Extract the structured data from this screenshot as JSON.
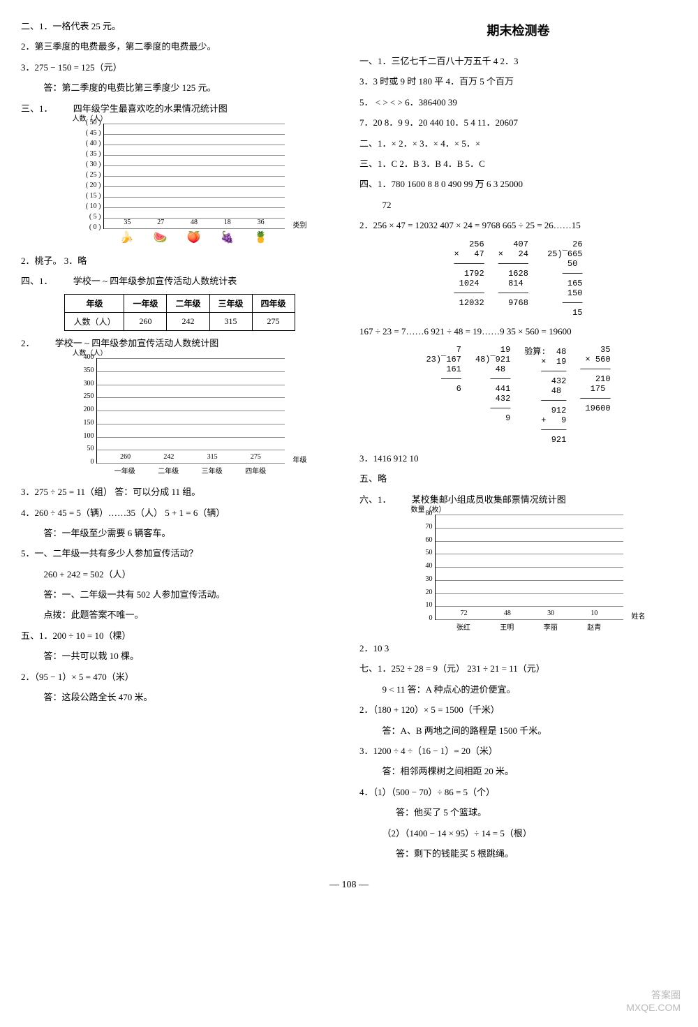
{
  "left": {
    "l1": "二、1．一格代表 25 元。",
    "l2": "2．第三季度的电费最多，第二季度的电费最少。",
    "l3": "3．275 − 150 = 125（元）",
    "l3a": "答：第二季度的电费比第三季度少 125 元。",
    "l4": "三、1．",
    "chart1_title": "四年级学生最喜欢吃的水果情况统计图",
    "chart1": {
      "yaxis_label": "人数（人）",
      "xaxis_label": "类别",
      "ymax": 50,
      "ystep": 5,
      "ylabels": [
        "( 50 )",
        "( 45 )",
        "( 40 )",
        "( 35 )",
        "( 30 )",
        "( 25 )",
        "( 20 )",
        "( 15 )",
        "( 10 )",
        "( 5 )",
        "( 0 )"
      ],
      "bars": [
        {
          "icon": "🍌",
          "val": 35
        },
        {
          "icon": "🍉",
          "val": 27
        },
        {
          "icon": "🍑",
          "val": 48
        },
        {
          "icon": "🍇",
          "val": 18
        },
        {
          "icon": "🍍",
          "val": 36
        }
      ],
      "bar_color": "#5a5a5a"
    },
    "l5": "2．桃子。    3．略",
    "l6": "四、1．",
    "table1_title": "学校一 ~ 四年级参加宣传活动人数统计表",
    "table1": {
      "headers": [
        "年级",
        "一年级",
        "二年级",
        "三年级",
        "四年级"
      ],
      "row_label": "人数（人）",
      "row": [
        "260",
        "242",
        "315",
        "275"
      ]
    },
    "l7": "2．",
    "chart2_title": "学校一 ~ 四年级参加宣传活动人数统计图",
    "chart2": {
      "yaxis_label": "人数（人）",
      "xaxis_label": "年级",
      "ymax": 400,
      "ystep": 50,
      "ylabels": [
        "400",
        "350",
        "300",
        "250",
        "200",
        "150",
        "100",
        "50",
        "0"
      ],
      "bars": [
        {
          "label": "一年级",
          "val": 260
        },
        {
          "label": "二年级",
          "val": 242
        },
        {
          "label": "三年级",
          "val": 315
        },
        {
          "label": "四年级",
          "val": 275
        }
      ],
      "bar_color": "#4a4a4a"
    },
    "l8": "3．275 ÷ 25 = 11（组）    答：可以分成 11 组。",
    "l9": "4．260 ÷ 45 = 5（辆）……35（人）    5 + 1 = 6（辆）",
    "l9a": "答：一年级至少需要 6 辆客车。",
    "l10": "5．一、二年级一共有多少人参加宣传活动？",
    "l10a": "260 + 242 = 502（人）",
    "l10b": "答：一、二年级一共有 502 人参加宣传活动。",
    "l10c": "点拨：此题答案不唯一。",
    "l11": "五、1．200 ÷ 10 = 10（棵）",
    "l11a": "答：一共可以栽 10 棵。",
    "l12": "2．（95 − 1）× 5 = 470（米）",
    "l12a": "答：这段公路全长 470 米。"
  },
  "right": {
    "title": "期末检测卷",
    "r1": "一、1．三亿七千二百八十万五千    4    2．3",
    "r2": "3．3 时或 9 时    180    平    4．百万    5 个百万",
    "r3": "5．   <    >    <    >    6．386400    39",
    "r4": "7．20    8．9    9．20    440    10．5    4    11．20607",
    "r5": "二、1．×    2．×    3．×    4．×    5．×",
    "r6": "三、1．C    2．B    3．B    4．B    5．C",
    "r7": "四、1．780    1600    8    8    0    490    99 万    6    3    25000",
    "r7a": "72",
    "r8": "2．256 × 47 = 12032    407 × 24 = 9768    665 ÷ 25 = 26……15",
    "calc_a": [
      "   256\n×   47\n──────\n  1792\n 1024 \n──────\n 12032",
      "   407\n×   24\n──────\n  1628\n  814 \n──────\n  9768",
      "      26\n25)‾665\n    50 \n   ────\n    165\n    150\n   ────\n     15"
    ],
    "r9": "167 ÷ 23 = 7……6    921 ÷ 48 = 19……9    35 × 560 = 19600",
    "calc_b": [
      "      7\n23)‾167\n    161\n   ────\n      6",
      "     19\n48)‾921\n    48 \n   ────\n    441\n    432\n   ────\n      9",
      "验算:  48\n  ×  19\n ─────\n   432\n   48 \n ─────\n   912\n +   9\n ─────\n   921",
      "    35\n× 560\n──────\n   210\n  175 \n──────\n 19600"
    ],
    "r10": "3．1416    912    10",
    "r11": "五、略",
    "r12": "六、1．",
    "chart3_title": "某校集邮小组成员收集邮票情况统计图",
    "chart3": {
      "yaxis_label": "数量（枚）",
      "xaxis_label": "姓名",
      "ymax": 80,
      "ystep": 10,
      "ylabels": [
        "80",
        "70",
        "60",
        "50",
        "40",
        "30",
        "20",
        "10",
        "0"
      ],
      "bars": [
        {
          "label": "张红",
          "val": 72
        },
        {
          "label": "王明",
          "val": 48
        },
        {
          "label": "李丽",
          "val": 30
        },
        {
          "label": "赵青",
          "val": 10
        }
      ],
      "bar_color": "#4a4a4a"
    },
    "r13": "2．10    3",
    "r14": "七、1．252 ÷ 28 = 9（元）    231 ÷ 21 = 11（元）",
    "r14a": "9 < 11    答：A 种点心的进价便宜。",
    "r15": "2．（180 + 120）× 5 = 1500（千米）",
    "r15a": "答：A、B 两地之间的路程是 1500 千米。",
    "r16": "3．1200 ÷ 4 ÷（16 − 1）= 20（米）",
    "r16a": "答：相邻两棵树之间相距 20 米。",
    "r17": "4．（1）（500 − 70）÷ 86 = 5（个）",
    "r17a": "答：他买了 5 个篮球。",
    "r18": "（2）（1400 − 14 × 95）÷ 14 = 5（根）",
    "r18a": "答：剩下的钱能买 5 根跳绳。"
  },
  "pagefoot": "— 108 —",
  "watermark1": "答案圈",
  "watermark2": "MXQE.COM"
}
